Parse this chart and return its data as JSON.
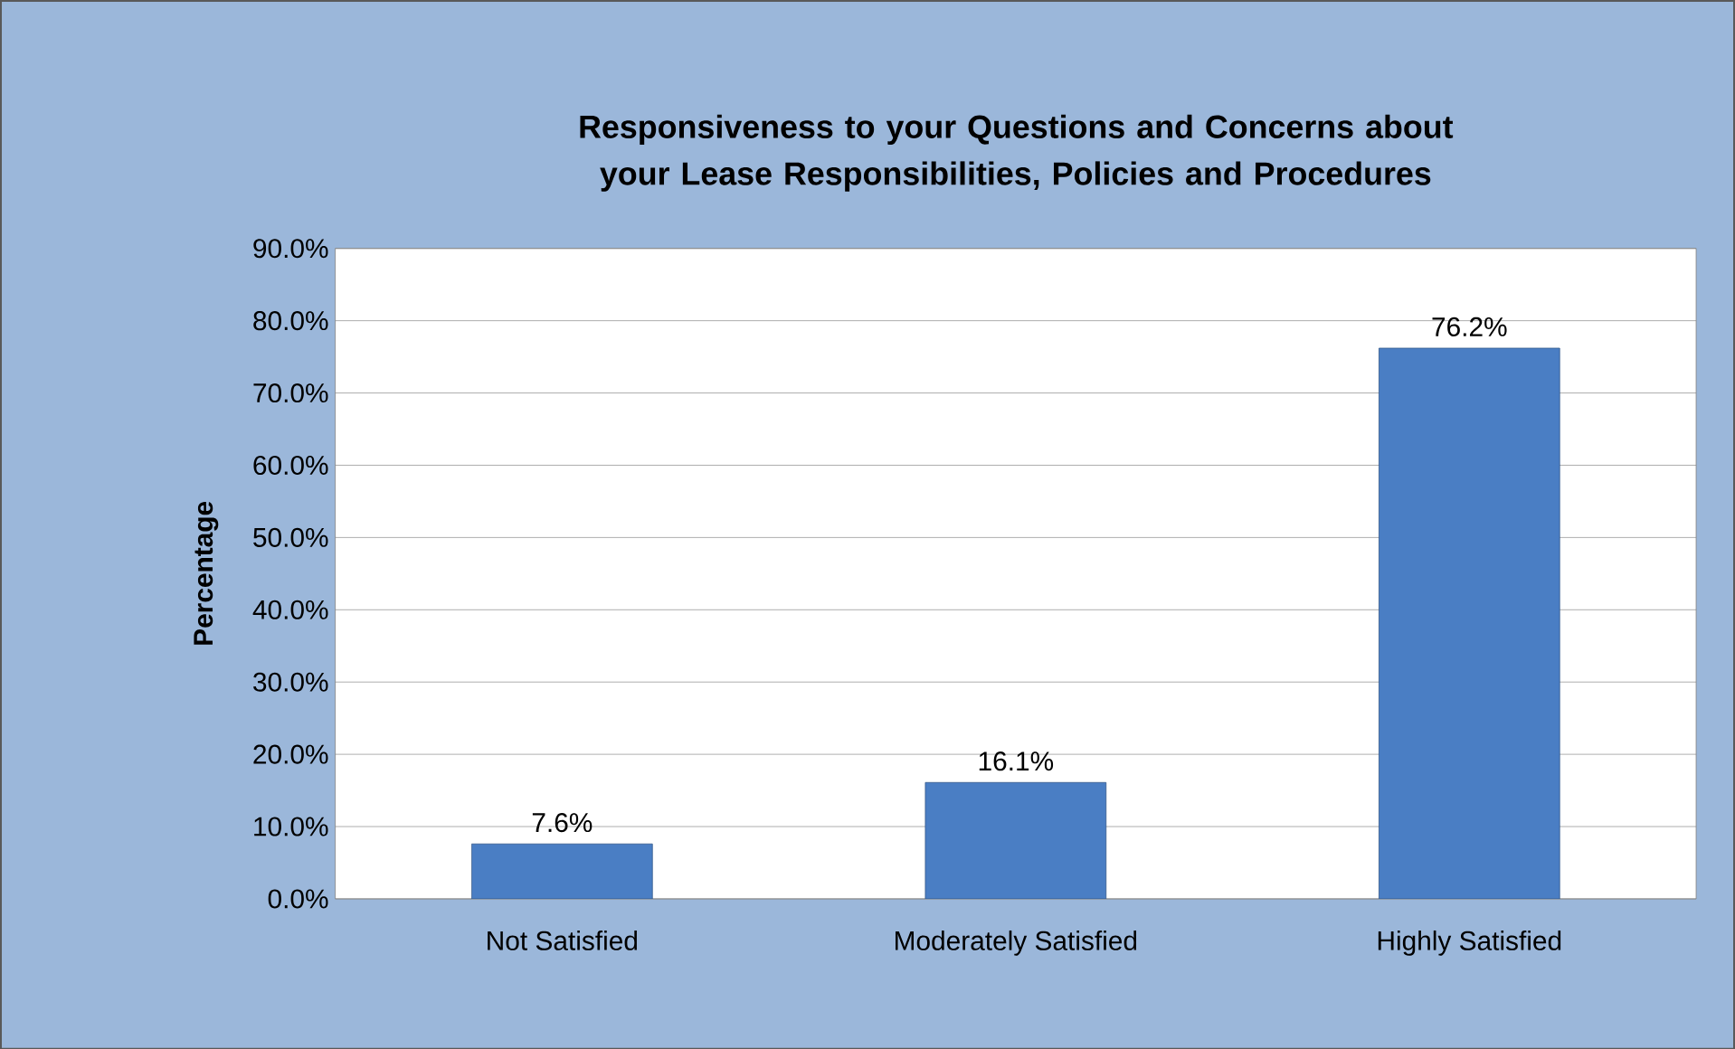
{
  "chart_data": {
    "type": "bar",
    "title": "Responsiveness to your Questions and Concerns about your Lease Responsibilities, Policies and Procedures",
    "ylabel": "Percentage",
    "categories": [
      "Not Satisfied",
      "Moderately Satisfied",
      "Highly Satisfied"
    ],
    "values": [
      7.6,
      16.1,
      76.2
    ],
    "value_labels": [
      "7.6%",
      "16.1%",
      "76.2%"
    ],
    "color": "#4a7ec4",
    "ylim": [
      0,
      90
    ],
    "yticks": [
      {
        "value": 0,
        "label": "0.0%"
      },
      {
        "value": 10,
        "label": "10.0%"
      },
      {
        "value": 20,
        "label": "20.0%"
      },
      {
        "value": 30,
        "label": "30.0%"
      },
      {
        "value": 40,
        "label": "40.0%"
      },
      {
        "value": 50,
        "label": "50.0%"
      },
      {
        "value": 60,
        "label": "60.0%"
      },
      {
        "value": 70,
        "label": "70.0%"
      },
      {
        "value": 80,
        "label": "80.0%"
      },
      {
        "value": 90,
        "label": "90.0%"
      }
    ],
    "grid": true
  }
}
